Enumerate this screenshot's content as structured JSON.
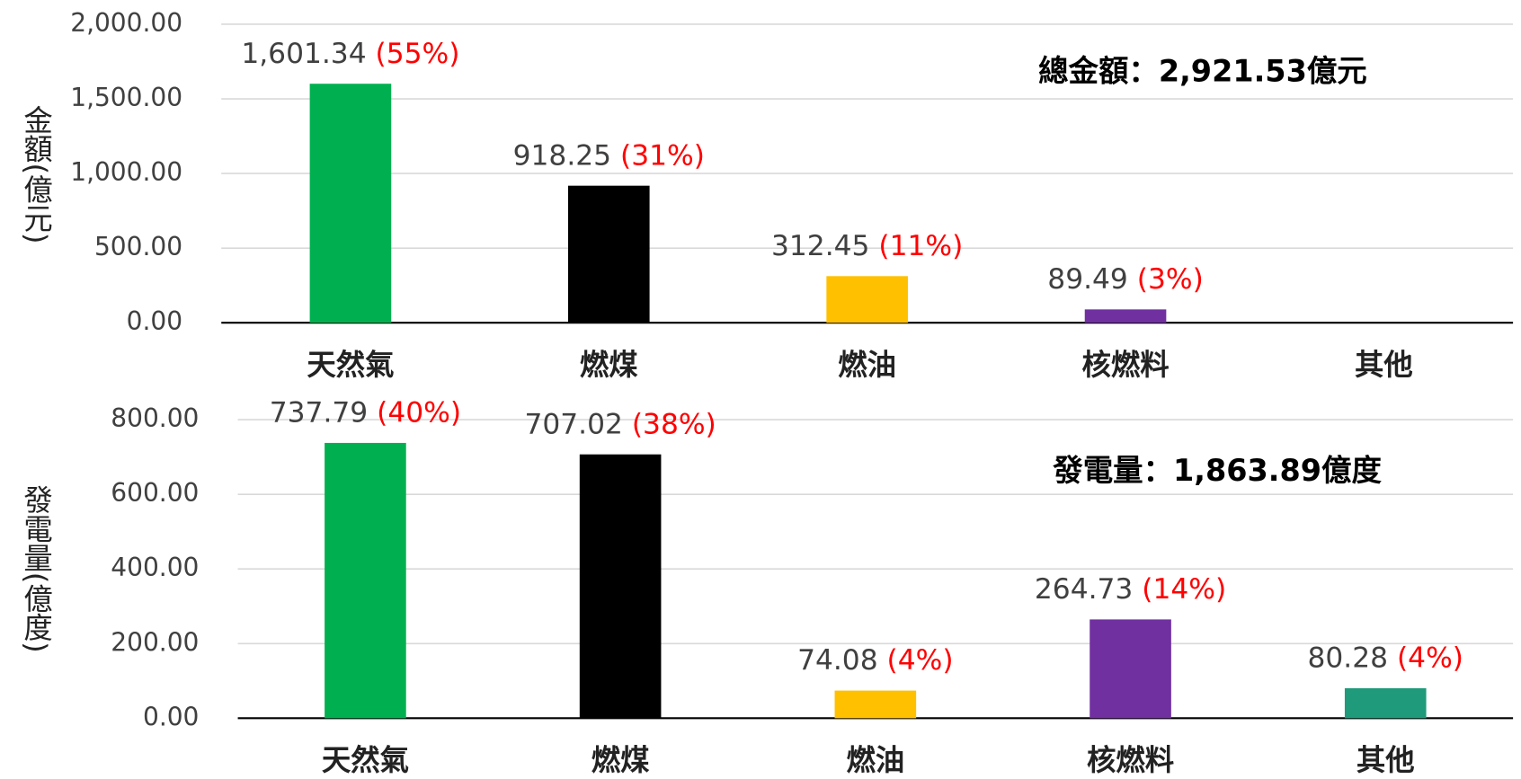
{
  "chart_data": [
    {
      "type": "bar",
      "y_label": "金額(億元)",
      "annotation": "總金額：2,921.53億元",
      "categories": [
        "天然氣",
        "燃煤",
        "燃油",
        "核燃料",
        "其他"
      ],
      "values": [
        1601.34,
        918.25,
        312.45,
        89.49,
        null
      ],
      "value_labels": [
        "1,601.34",
        "918.25",
        "312.45",
        "89.49",
        null
      ],
      "share_labels": [
        "(55%)",
        "(31%)",
        "(11%)",
        "(3%)",
        null
      ],
      "colors": [
        "#00b050",
        "#000000",
        "#ffc000",
        "#7030a0",
        "#1f9a7a"
      ],
      "ylim": [
        0,
        2000
      ],
      "yticks": [
        {
          "value": 0,
          "label": "0.00"
        },
        {
          "value": 500,
          "label": "500.00"
        },
        {
          "value": 1000,
          "label": "1,000.00"
        },
        {
          "value": 1500,
          "label": "1,500.00"
        },
        {
          "value": 2000,
          "label": "2,000.00"
        }
      ],
      "grid": true
    },
    {
      "type": "bar",
      "y_label": "發電量(億度)",
      "annotation": "發電量：1,863.89億度",
      "categories": [
        "天然氣",
        "燃煤",
        "燃油",
        "核燃料",
        "其他"
      ],
      "values": [
        737.79,
        707.02,
        74.08,
        264.73,
        80.28
      ],
      "value_labels": [
        "737.79",
        "707.02",
        "74.08",
        "264.73",
        "80.28"
      ],
      "share_labels": [
        "(40%)",
        "(38%)",
        "(4%)",
        "(14%)",
        "(4%)"
      ],
      "colors": [
        "#00b050",
        "#000000",
        "#ffc000",
        "#7030a0",
        "#1f9a7a"
      ],
      "ylim": [
        0,
        800
      ],
      "yticks": [
        {
          "value": 0,
          "label": "0.00"
        },
        {
          "value": 200,
          "label": "200.00"
        },
        {
          "value": 400,
          "label": "400.00"
        },
        {
          "value": 600,
          "label": "600.00"
        },
        {
          "value": 800,
          "label": "800.00"
        }
      ],
      "grid": true
    }
  ]
}
